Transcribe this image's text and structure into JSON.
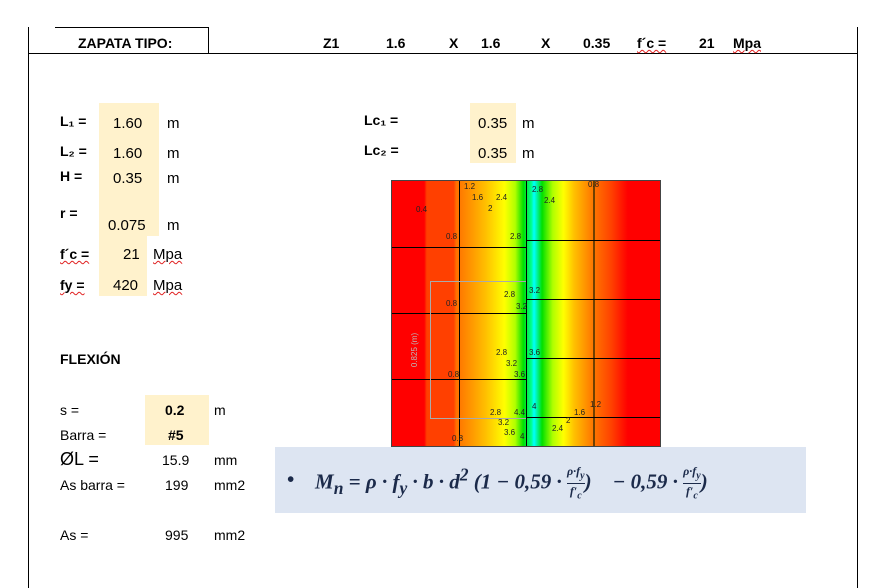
{
  "header": {
    "title": "ZAPATA TIPO:",
    "id": "Z1",
    "dim1": "1.6",
    "x1": "X",
    "dim2": "1.6",
    "x2": "X",
    "dim3": "0.35",
    "fc_label": "f´c =",
    "fc_value": "21",
    "fc_unit": "Mpa"
  },
  "params": [
    {
      "label": "L₁ =",
      "value": "1.60",
      "unit": "m"
    },
    {
      "label": "L₂ =",
      "value": "1.60",
      "unit": "m"
    },
    {
      "label": "H =",
      "value": "0.35",
      "unit": "m"
    },
    {
      "label": "r =",
      "value": "0.075",
      "unit": "m"
    },
    {
      "label": "f´c =",
      "value": "21",
      "unit": "Mpa"
    },
    {
      "label": "fy =",
      "value": "420",
      "unit": "Mpa"
    }
  ],
  "columns": [
    {
      "label": "Lc₁ =",
      "value": "0.35",
      "unit": "m"
    },
    {
      "label": "Lc₂ =",
      "value": "0.35",
      "unit": "m"
    }
  ],
  "flexion": {
    "title": "FLEXIÓN",
    "rows": [
      {
        "label": "s =",
        "value": "0.2",
        "unit": "m"
      },
      {
        "label": "Barra =",
        "value": "#5",
        "unit": ""
      },
      {
        "label": "ØL =",
        "value": "15.9",
        "unit": "mm"
      },
      {
        "label": "As barra =",
        "value": "199",
        "unit": "mm2"
      },
      {
        "label": "As =",
        "value": "995",
        "unit": "mm2"
      }
    ]
  },
  "plot": {
    "dimension_label": "0.825 (m)",
    "contour_labels": [
      "1.2",
      "1.6",
      "2.4",
      "2",
      "0.4",
      "2.8",
      "2.4",
      "0.8",
      "2.8",
      "0.8",
      "2.8",
      "3.2",
      "3.2",
      "0.8",
      "2.8",
      "3.2",
      "3.6",
      "3.6",
      "2.8",
      "3.2",
      "3.6",
      "4",
      "4.4",
      "4",
      "2.4",
      "2",
      "1.6",
      "1.2",
      "0.8",
      "0.8"
    ]
  },
  "formula": {
    "bullet": "•",
    "lhs": "M",
    "lhs_sub": "n",
    "body": "= ρ · f",
    "fy_sub": "y",
    "body2": "· b · d",
    "sq": "2",
    "paren": "(1 − 0,59 ·",
    "num": "ρ·f",
    "num_sub": "y",
    "den": "f′",
    "den_sub": "c",
    "close": ")",
    "second": "− 0,59 ·"
  }
}
